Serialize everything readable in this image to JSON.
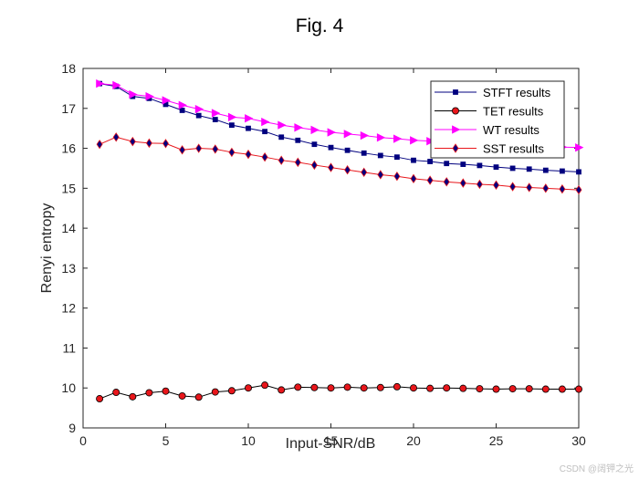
{
  "chart_data": {
    "type": "line",
    "title": "Fig. 4",
    "xlabel": "Input-SNR/dB",
    "ylabel": "Renyi entropy",
    "xlim": [
      0,
      30
    ],
    "ylim": [
      9,
      18
    ],
    "xticks": [
      0,
      5,
      10,
      15,
      20,
      25,
      30
    ],
    "yticks": [
      9,
      10,
      11,
      12,
      13,
      14,
      15,
      16,
      17,
      18
    ],
    "grid": false,
    "legend_position": "top-right",
    "x": [
      1,
      2,
      3,
      4,
      5,
      6,
      7,
      8,
      9,
      10,
      11,
      12,
      13,
      14,
      15,
      16,
      17,
      18,
      19,
      20,
      21,
      22,
      23,
      24,
      25,
      26,
      27,
      28,
      29,
      30
    ],
    "series": [
      {
        "name": "STFT results",
        "color": "#00007f",
        "marker": "square",
        "marker_fill": "#00007f",
        "values": [
          17.62,
          17.55,
          17.3,
          17.25,
          17.1,
          16.95,
          16.82,
          16.72,
          16.58,
          16.5,
          16.42,
          16.28,
          16.2,
          16.1,
          16.02,
          15.95,
          15.88,
          15.82,
          15.78,
          15.7,
          15.67,
          15.62,
          15.6,
          15.57,
          15.53,
          15.5,
          15.48,
          15.45,
          15.43,
          15.41
        ]
      },
      {
        "name": "TET results",
        "color": "#000000",
        "marker": "circle",
        "marker_fill": "#e8161b",
        "values": [
          9.73,
          9.89,
          9.78,
          9.88,
          9.92,
          9.8,
          9.77,
          9.9,
          9.93,
          10.0,
          10.07,
          9.95,
          10.02,
          10.01,
          10.0,
          10.02,
          10.0,
          10.01,
          10.03,
          10.0,
          9.99,
          10.0,
          9.99,
          9.98,
          9.97,
          9.98,
          9.98,
          9.97,
          9.97,
          9.97
        ]
      },
      {
        "name": "WT results",
        "color": "#ff00ff",
        "marker": "triangle-right",
        "marker_fill": "#ff00ff",
        "values": [
          17.62,
          17.58,
          17.35,
          17.3,
          17.2,
          17.08,
          16.98,
          16.88,
          16.78,
          16.75,
          16.66,
          16.58,
          16.52,
          16.46,
          16.4,
          16.36,
          16.32,
          16.27,
          16.24,
          16.2,
          16.18,
          16.15,
          16.12,
          16.1,
          16.08,
          16.06,
          16.05,
          16.04,
          16.03,
          16.02
        ]
      },
      {
        "name": "SST results",
        "color": "#e8161b",
        "marker": "diamond",
        "marker_fill": "#00007f",
        "values": [
          16.1,
          16.28,
          16.17,
          16.13,
          16.12,
          15.96,
          16.0,
          15.98,
          15.9,
          15.85,
          15.78,
          15.7,
          15.65,
          15.58,
          15.52,
          15.46,
          15.4,
          15.34,
          15.3,
          15.24,
          15.2,
          15.16,
          15.13,
          15.1,
          15.08,
          15.04,
          15.02,
          15.0,
          14.98,
          14.96
        ]
      }
    ]
  },
  "watermark": "CSDN @阔钾之光"
}
